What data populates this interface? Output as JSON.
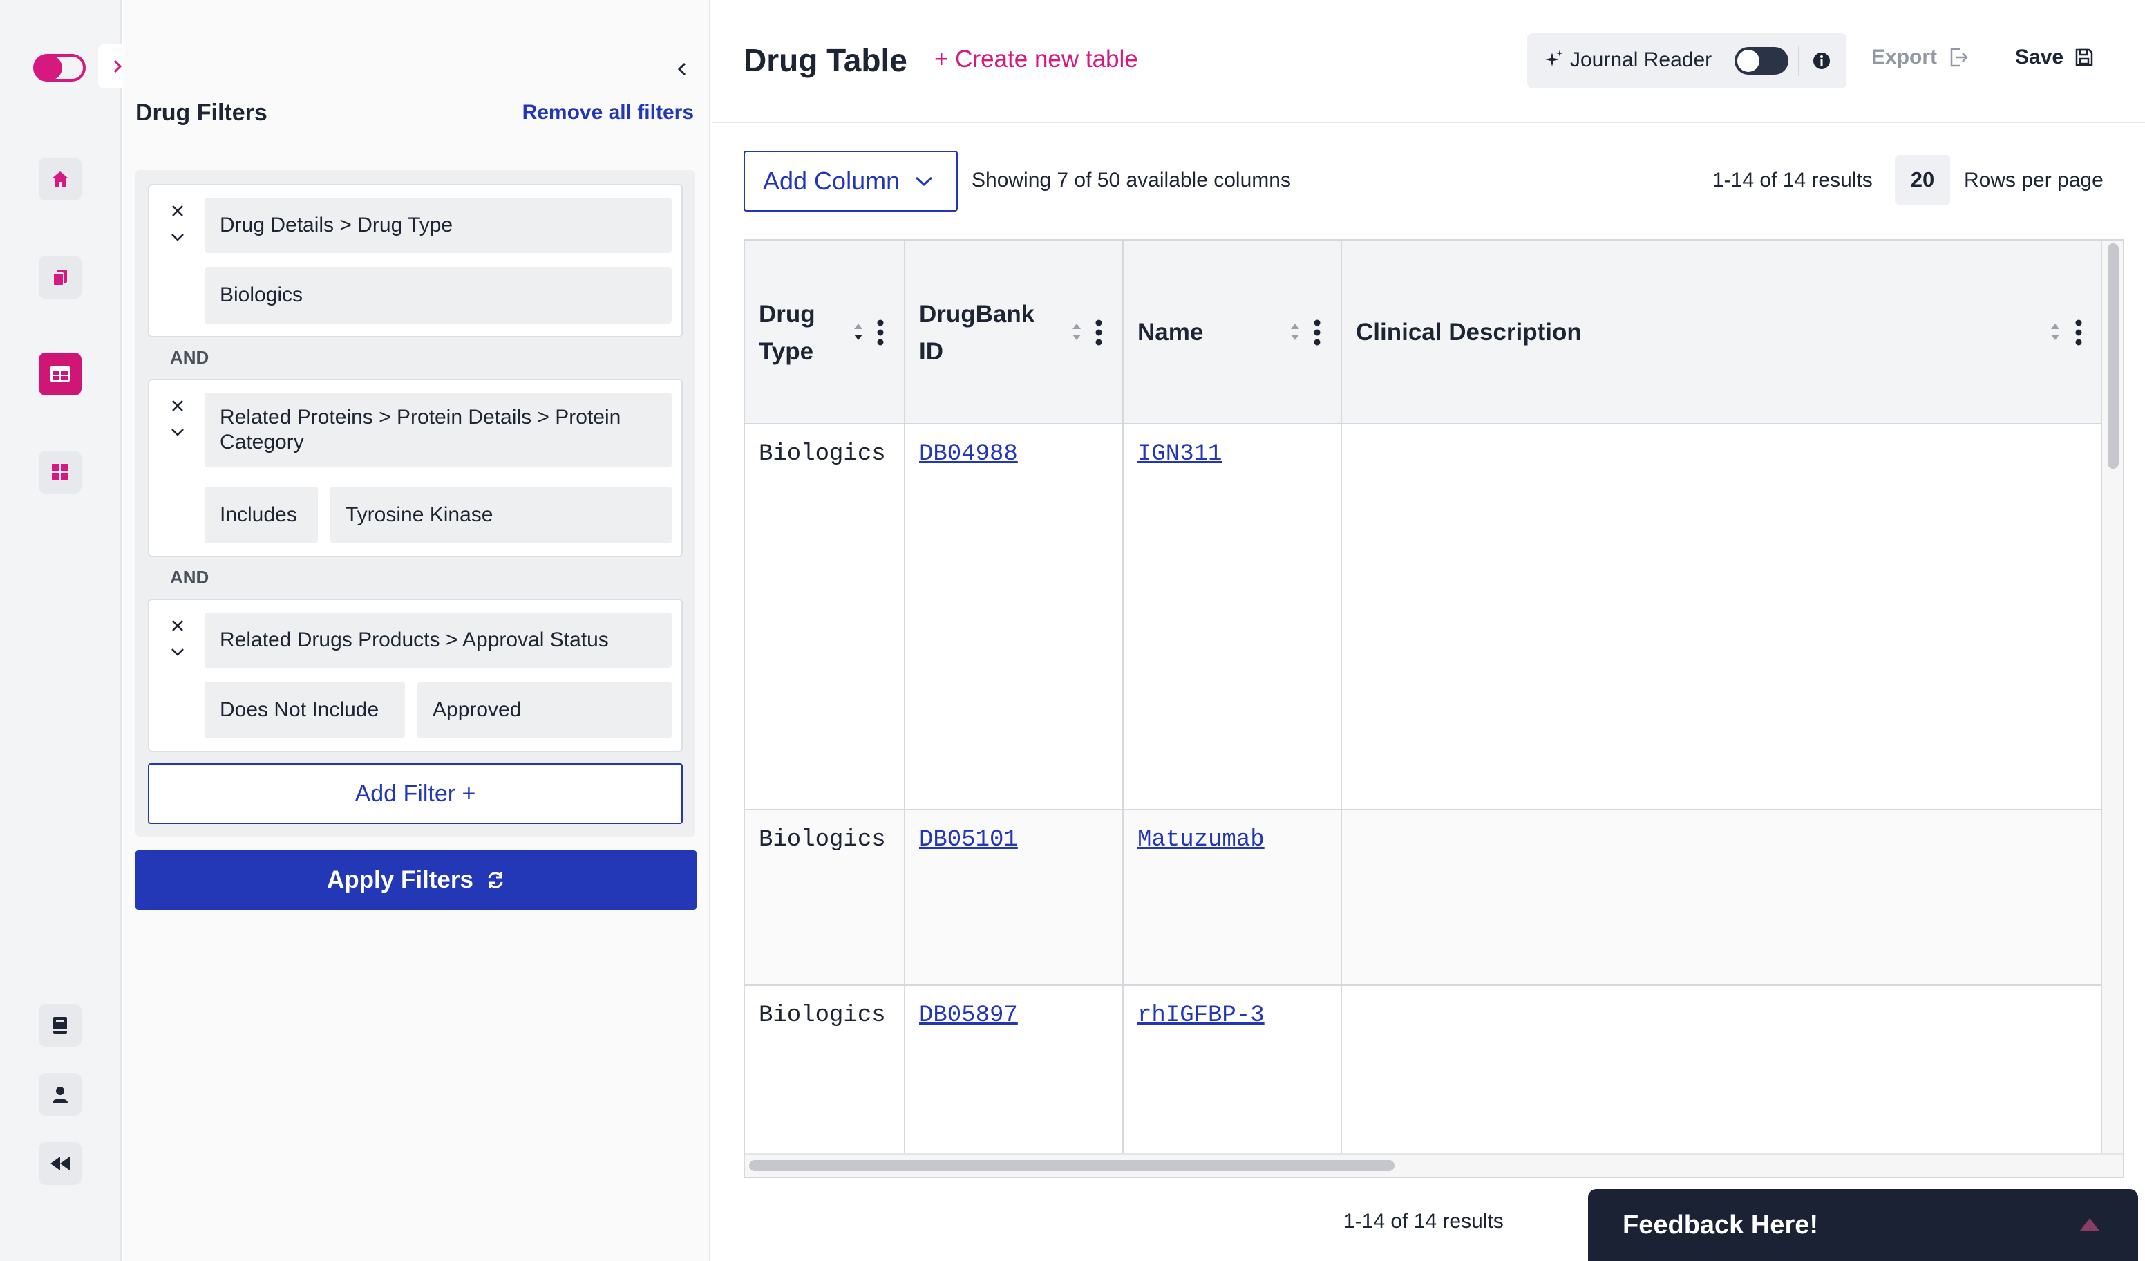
{
  "colors": {
    "brand": "#d6197f",
    "primary": "#2336b8",
    "dark": "#1b2233"
  },
  "rail": {
    "items": [
      {
        "name": "home",
        "icon": "home-icon"
      },
      {
        "name": "documents",
        "icon": "documents-icon"
      },
      {
        "name": "tables",
        "icon": "table-icon",
        "active": true
      },
      {
        "name": "dashboard",
        "icon": "grid-icon"
      },
      {
        "name": "journal",
        "icon": "book-icon"
      },
      {
        "name": "account",
        "icon": "user-icon"
      },
      {
        "name": "rewind",
        "icon": "rewind-icon"
      }
    ]
  },
  "filters_panel": {
    "title": "Drug Filters",
    "remove_all_label": "Remove all filters",
    "filters": [
      {
        "path": "Drug Details > Drug Type",
        "value": "Biologics"
      },
      {
        "path": "Related Proteins > Protein Details > Protein Category",
        "operator": "Includes",
        "value": "Tyrosine Kinase"
      },
      {
        "path": "Related Drugs Products > Approval Status",
        "operator": "Does Not Include",
        "value": "Approved"
      }
    ],
    "connector": "AND",
    "add_filter_label": "Add Filter +",
    "apply_label": "Apply Filters"
  },
  "header": {
    "title": "Drug Table",
    "create_label": "+ Create new table",
    "journal_reader_label": "Journal Reader",
    "journal_reader_on": false,
    "export_label": "Export",
    "save_label": "Save"
  },
  "toolbar": {
    "add_column_label": "Add Column",
    "showing_text": "Showing 7 of 50 available columns",
    "results_text": "1-14 of 14 results",
    "rows_per_page_value": "20",
    "rows_per_page_label": "Rows per page"
  },
  "table": {
    "columns": [
      "Drug\nType",
      "DrugBank\nID",
      "Name",
      "Clinical Description"
    ],
    "rows": [
      {
        "drug_type": "Biologics",
        "drugbank_id": "DB04988",
        "name": "IGN311",
        "clinical_description": ""
      },
      {
        "drug_type": "Biologics",
        "drugbank_id": "DB05101",
        "name": "Matuzumab",
        "clinical_description": ""
      },
      {
        "drug_type": "Biologics",
        "drugbank_id": "DB05897",
        "name": "rhIGFBP-3",
        "clinical_description": ""
      }
    ]
  },
  "footer": {
    "results_text": "1-14 of 14 results",
    "feedback_label": "Feedback Here!"
  }
}
